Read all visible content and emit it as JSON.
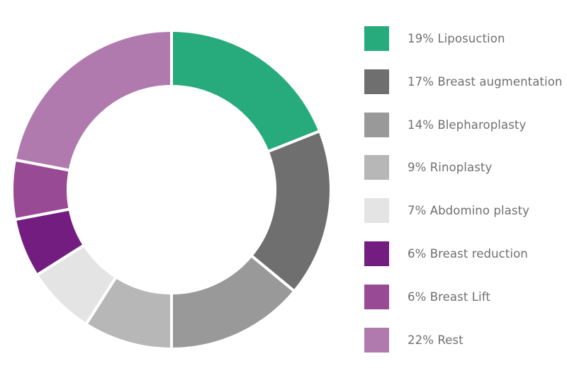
{
  "chart_data": {
    "type": "pie",
    "donut": true,
    "title": "",
    "legend_position": "right",
    "slices": [
      {
        "label": "19% Liposuction",
        "name": "Liposuction",
        "value": 19,
        "color": "#27ab7d"
      },
      {
        "label": "17% Breast augmentation",
        "name": "Breast augmentation",
        "value": 17,
        "color": "#6f6f6f"
      },
      {
        "label": "14% Blepharoplasty",
        "name": "Blepharoplasty",
        "value": 14,
        "color": "#999999"
      },
      {
        "label": "9% Rinoplasty",
        "name": "Rinoplasty",
        "value": 9,
        "color": "#b7b7b7"
      },
      {
        "label": "7% Abdomino plasty",
        "name": "Abdomino plasty",
        "value": 7,
        "color": "#e4e4e4"
      },
      {
        "label": "6% Breast reduction",
        "name": "Breast reduction",
        "value": 6,
        "color": "#741d80"
      },
      {
        "label": "6% Breast Lift",
        "name": "Breast Lift",
        "value": 6,
        "color": "#984a95"
      },
      {
        "label": "22% Rest",
        "name": "Rest",
        "value": 22,
        "color": "#b07aae"
      }
    ]
  }
}
